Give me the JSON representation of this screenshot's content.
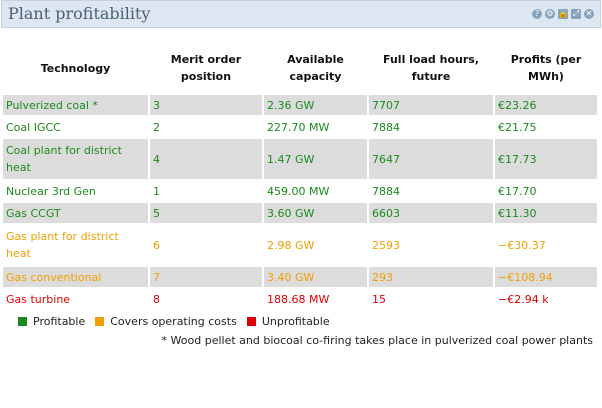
{
  "header": {
    "title": "Plant profitability"
  },
  "icons": [
    "help-icon",
    "settings-icon",
    "unlock-icon",
    "maximize-icon",
    "close-icon"
  ],
  "table": {
    "columns": [
      "Technology",
      "Merit order position",
      "Available capacity",
      "Full load hours, future",
      "Profits (per MWh)"
    ],
    "rows": [
      {
        "status": "profitable",
        "technology": "Pulverized coal *",
        "merit": "3",
        "capacity": "2.36 GW",
        "hours": "7707",
        "profit": "€23.26"
      },
      {
        "status": "profitable",
        "technology": "Coal IGCC",
        "merit": "2",
        "capacity": "227.70 MW",
        "hours": "7884",
        "profit": "€21.75"
      },
      {
        "status": "profitable",
        "technology": "Coal plant for district heat",
        "merit": "4",
        "capacity": "1.47 GW",
        "hours": "7647",
        "profit": "€17.73"
      },
      {
        "status": "profitable",
        "technology": "Nuclear 3rd Gen",
        "merit": "1",
        "capacity": "459.00 MW",
        "hours": "7884",
        "profit": "€17.70"
      },
      {
        "status": "profitable",
        "technology": "Gas CCGT",
        "merit": "5",
        "capacity": "3.60 GW",
        "hours": "6603",
        "profit": "€11.30"
      },
      {
        "status": "covers",
        "technology": "Gas plant for district heat",
        "merit": "6",
        "capacity": "2.98 GW",
        "hours": "2593",
        "profit": "−€30.37"
      },
      {
        "status": "covers",
        "technology": "Gas conventional",
        "merit": "7",
        "capacity": "3.40 GW",
        "hours": "293",
        "profit": "−€108.94"
      },
      {
        "status": "unprofitable",
        "technology": "Gas turbine",
        "merit": "8",
        "capacity": "188.68 MW",
        "hours": "15",
        "profit": "−€2.94 k"
      }
    ]
  },
  "legend": [
    {
      "key": "profitable",
      "label": "Profitable",
      "color": "#1b8a1b"
    },
    {
      "key": "covers",
      "label": "Covers operating costs",
      "color": "#f2a000"
    },
    {
      "key": "unprofitable",
      "label": "Unprofitable",
      "color": "#e00000"
    }
  ],
  "footnote": "* Wood pellet and biocoal co-firing takes place in pulverized coal power plants"
}
